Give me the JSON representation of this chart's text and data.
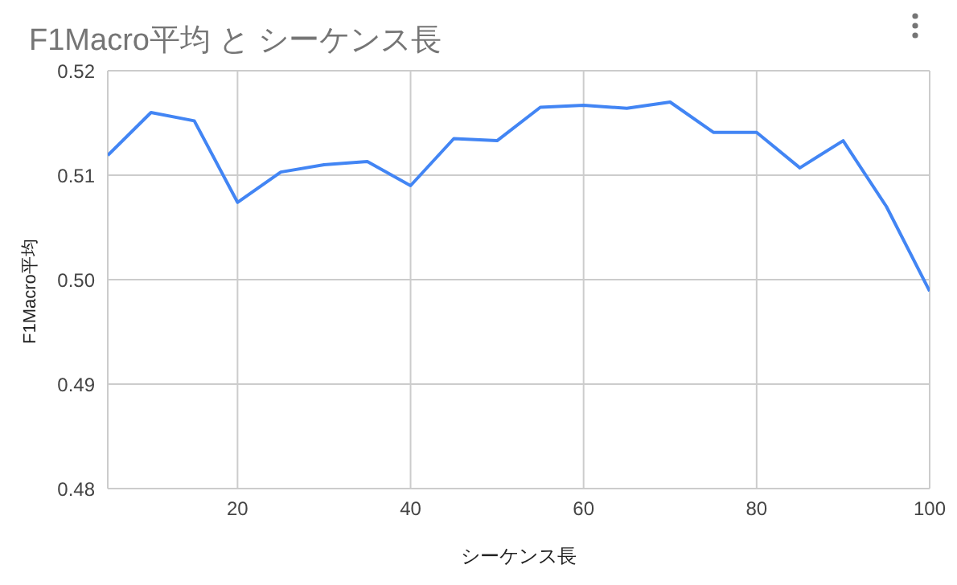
{
  "chart_data": {
    "type": "line",
    "title": "F1Macro平均 と シーケンス長",
    "xlabel": "シーケンス長",
    "ylabel": "F1Macro平均",
    "x": [
      5,
      10,
      15,
      20,
      25,
      30,
      35,
      40,
      45,
      50,
      55,
      60,
      65,
      70,
      75,
      80,
      85,
      90,
      95,
      100
    ],
    "series": [
      {
        "color": "#4285f4",
        "values": [
          0.5119,
          0.516,
          0.5152,
          0.5074,
          0.5103,
          0.511,
          0.5113,
          0.509,
          0.5135,
          0.5133,
          0.5165,
          0.5167,
          0.5164,
          0.517,
          0.5141,
          0.5141,
          0.5107,
          0.5133,
          0.507,
          0.4989
        ]
      }
    ],
    "xlim": [
      5,
      100
    ],
    "xticks": [
      20,
      40,
      60,
      80,
      100
    ],
    "ylim": [
      0.48,
      0.52
    ],
    "yticks": [
      {
        "value": 0.48,
        "label": "0.48"
      },
      {
        "value": 0.49,
        "label": "0.49"
      },
      {
        "value": 0.5,
        "label": "0.50"
      },
      {
        "value": 0.51,
        "label": "0.51"
      },
      {
        "value": 0.52,
        "label": "0.52"
      }
    ],
    "grid": true,
    "marker": "none",
    "line_style": "solid"
  }
}
